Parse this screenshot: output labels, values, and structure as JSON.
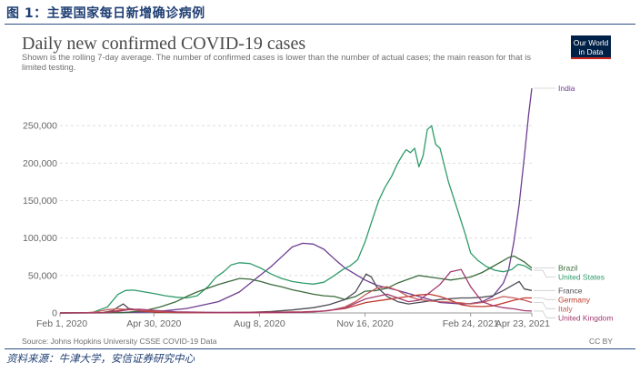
{
  "figure": {
    "caption": "图 1：主要国家每日新增确诊病例",
    "footnote": "资料来源：牛津大学，安信证券研究中心"
  },
  "logo": {
    "line1": "Our World",
    "line2": "in Data"
  },
  "source": "Source: Johns Hopkins University CSSE COVID-19 Data",
  "license": "CC BY",
  "chart_data": {
    "type": "line",
    "title": "Daily new confirmed COVID-19 cases",
    "subtitle": "Shown is the rolling 7-day average. The number of confirmed cases is lower than the number of actual cases; the main reason for that is limited testing.",
    "xlabel": "",
    "ylabel": "",
    "x_range": [
      0,
      447
    ],
    "ylim": [
      0,
      300000
    ],
    "y_ticks": [
      0,
      50000,
      100000,
      150000,
      200000,
      250000
    ],
    "y_tick_labels": [
      "0",
      "50,000",
      "100,000",
      "150,000",
      "200,000",
      "250,000"
    ],
    "x_ticks": [
      0,
      89,
      189,
      289,
      389,
      447
    ],
    "x_tick_labels": [
      "Feb 1, 2020",
      "Apr 30, 2020",
      "Aug 8, 2020",
      "Nov 16, 2020",
      "Feb 24, 2021",
      "Apr 23, 2021"
    ],
    "series": [
      {
        "name": "India",
        "color": "#6d3e91",
        "label": "India",
        "x": [
          0,
          55,
          89,
          120,
          150,
          170,
          185,
          200,
          210,
          220,
          230,
          240,
          250,
          260,
          270,
          289,
          300,
          320,
          340,
          360,
          380,
          389,
          400,
          410,
          420,
          425,
          430,
          435,
          440,
          444,
          447
        ],
        "y": [
          0,
          500,
          1500,
          6000,
          15000,
          28000,
          45000,
          62000,
          75000,
          88000,
          93000,
          92000,
          85000,
          72000,
          60000,
          44000,
          37000,
          30000,
          22000,
          14000,
          12000,
          12500,
          15000,
          22000,
          40000,
          58000,
          95000,
          145000,
          210000,
          265000,
          300000
        ]
      },
      {
        "name": "United States",
        "color": "#2e9b6a",
        "label": "United States",
        "x": [
          0,
          30,
          45,
          55,
          62,
          70,
          80,
          89,
          100,
          110,
          120,
          130,
          140,
          148,
          155,
          162,
          170,
          180,
          190,
          200,
          210,
          220,
          230,
          240,
          250,
          260,
          268,
          275,
          282,
          289,
          296,
          302,
          308,
          314,
          320,
          325,
          328,
          332,
          336,
          340,
          344,
          348,
          352,
          356,
          360,
          368,
          376,
          384,
          389,
          396,
          404,
          412,
          420,
          428,
          434,
          440,
          447
        ],
        "y": [
          0,
          300,
          8000,
          25000,
          30000,
          30500,
          28000,
          26000,
          23000,
          21000,
          20000,
          23000,
          35000,
          48000,
          55000,
          64000,
          67000,
          66000,
          60000,
          52000,
          46000,
          42000,
          40000,
          38500,
          41000,
          50000,
          58000,
          63000,
          71000,
          95000,
          125000,
          150000,
          168000,
          182000,
          200000,
          212000,
          218000,
          214000,
          220000,
          195000,
          210000,
          245000,
          250000,
          225000,
          220000,
          175000,
          140000,
          105000,
          80000,
          70000,
          62000,
          57000,
          55000,
          58000,
          65000,
          63000,
          57000
        ]
      },
      {
        "name": "Brazil",
        "color": "#3b6b3b",
        "label": "Brazil",
        "x": [
          0,
          40,
          60,
          80,
          95,
          110,
          120,
          130,
          140,
          150,
          160,
          170,
          180,
          190,
          200,
          210,
          220,
          230,
          240,
          250,
          260,
          270,
          280,
          289,
          300,
          310,
          320,
          330,
          340,
          350,
          360,
          370,
          380,
          389,
          400,
          410,
          420,
          425,
          430,
          435,
          440,
          447
        ],
        "y": [
          0,
          0,
          500,
          3000,
          8000,
          15000,
          22000,
          28000,
          33000,
          38000,
          42000,
          46000,
          45000,
          42000,
          38000,
          35000,
          31000,
          28000,
          25000,
          23000,
          22000,
          18000,
          22000,
          29000,
          30000,
          33000,
          40000,
          45000,
          50000,
          48000,
          46000,
          44000,
          46000,
          48000,
          54000,
          62000,
          70000,
          74000,
          76000,
          72000,
          68000,
          60000
        ]
      },
      {
        "name": "France",
        "color": "#4b4b55",
        "label": "France",
        "x": [
          0,
          40,
          50,
          55,
          60,
          65,
          72,
          80,
          89,
          110,
          150,
          180,
          200,
          220,
          240,
          255,
          270,
          280,
          285,
          290,
          295,
          300,
          310,
          320,
          330,
          340,
          360,
          380,
          389,
          400,
          410,
          420,
          430,
          435,
          440,
          447
        ],
        "y": [
          0,
          500,
          3000,
          8000,
          12000,
          6000,
          4500,
          3500,
          1000,
          500,
          500,
          800,
          2000,
          4000,
          7000,
          11000,
          18000,
          28000,
          40000,
          52000,
          48000,
          35000,
          22000,
          15000,
          12000,
          14000,
          18000,
          20000,
          20000,
          21000,
          23000,
          30000,
          38000,
          42000,
          32000,
          30000
        ]
      },
      {
        "name": "Germany",
        "color": "#c0392b",
        "label": "Germany",
        "x": [
          0,
          40,
          55,
          65,
          75,
          89,
          120,
          160,
          200,
          230,
          250,
          270,
          290,
          310,
          320,
          330,
          340,
          350,
          360,
          370,
          380,
          389,
          400,
          410,
          420,
          430,
          440,
          447
        ],
        "y": [
          0,
          200,
          3000,
          5500,
          3000,
          1200,
          400,
          500,
          1000,
          1500,
          2500,
          6000,
          14000,
          18000,
          20000,
          22000,
          24000,
          25000,
          22000,
          17000,
          11000,
          9000,
          8500,
          9500,
          13000,
          17000,
          20000,
          20000
        ]
      },
      {
        "name": "Italy",
        "color": "#c55a5a",
        "label": "Italy",
        "x": [
          0,
          25,
          35,
          45,
          55,
          60,
          70,
          89,
          100,
          130,
          170,
          200,
          220,
          240,
          255,
          270,
          280,
          290,
          300,
          310,
          320,
          330,
          340,
          350,
          360,
          370,
          380,
          389,
          400,
          410,
          420,
          430,
          440,
          447
        ],
        "y": [
          0,
          200,
          1500,
          4500,
          5500,
          5000,
          4000,
          2500,
          1500,
          500,
          300,
          300,
          600,
          1500,
          3000,
          8000,
          15000,
          25000,
          33000,
          35000,
          30000,
          22000,
          18000,
          16000,
          15000,
          14500,
          13500,
          12000,
          14000,
          18000,
          22000,
          20000,
          17000,
          14000
        ]
      },
      {
        "name": "United Kingdom",
        "color": "#a33b6f",
        "label": "United Kingdom",
        "x": [
          0,
          40,
          55,
          65,
          75,
          89,
          110,
          140,
          170,
          200,
          230,
          250,
          270,
          280,
          290,
          300,
          310,
          320,
          330,
          340,
          350,
          360,
          370,
          380,
          389,
          400,
          410,
          420,
          430,
          440,
          447
        ],
        "y": [
          0,
          100,
          2000,
          4500,
          5000,
          3500,
          1500,
          800,
          600,
          700,
          1000,
          2500,
          6500,
          13000,
          19000,
          22000,
          25000,
          20000,
          15000,
          17000,
          27000,
          38000,
          55000,
          58000,
          35000,
          15000,
          10000,
          7000,
          5500,
          3000,
          2500
        ]
      }
    ]
  }
}
